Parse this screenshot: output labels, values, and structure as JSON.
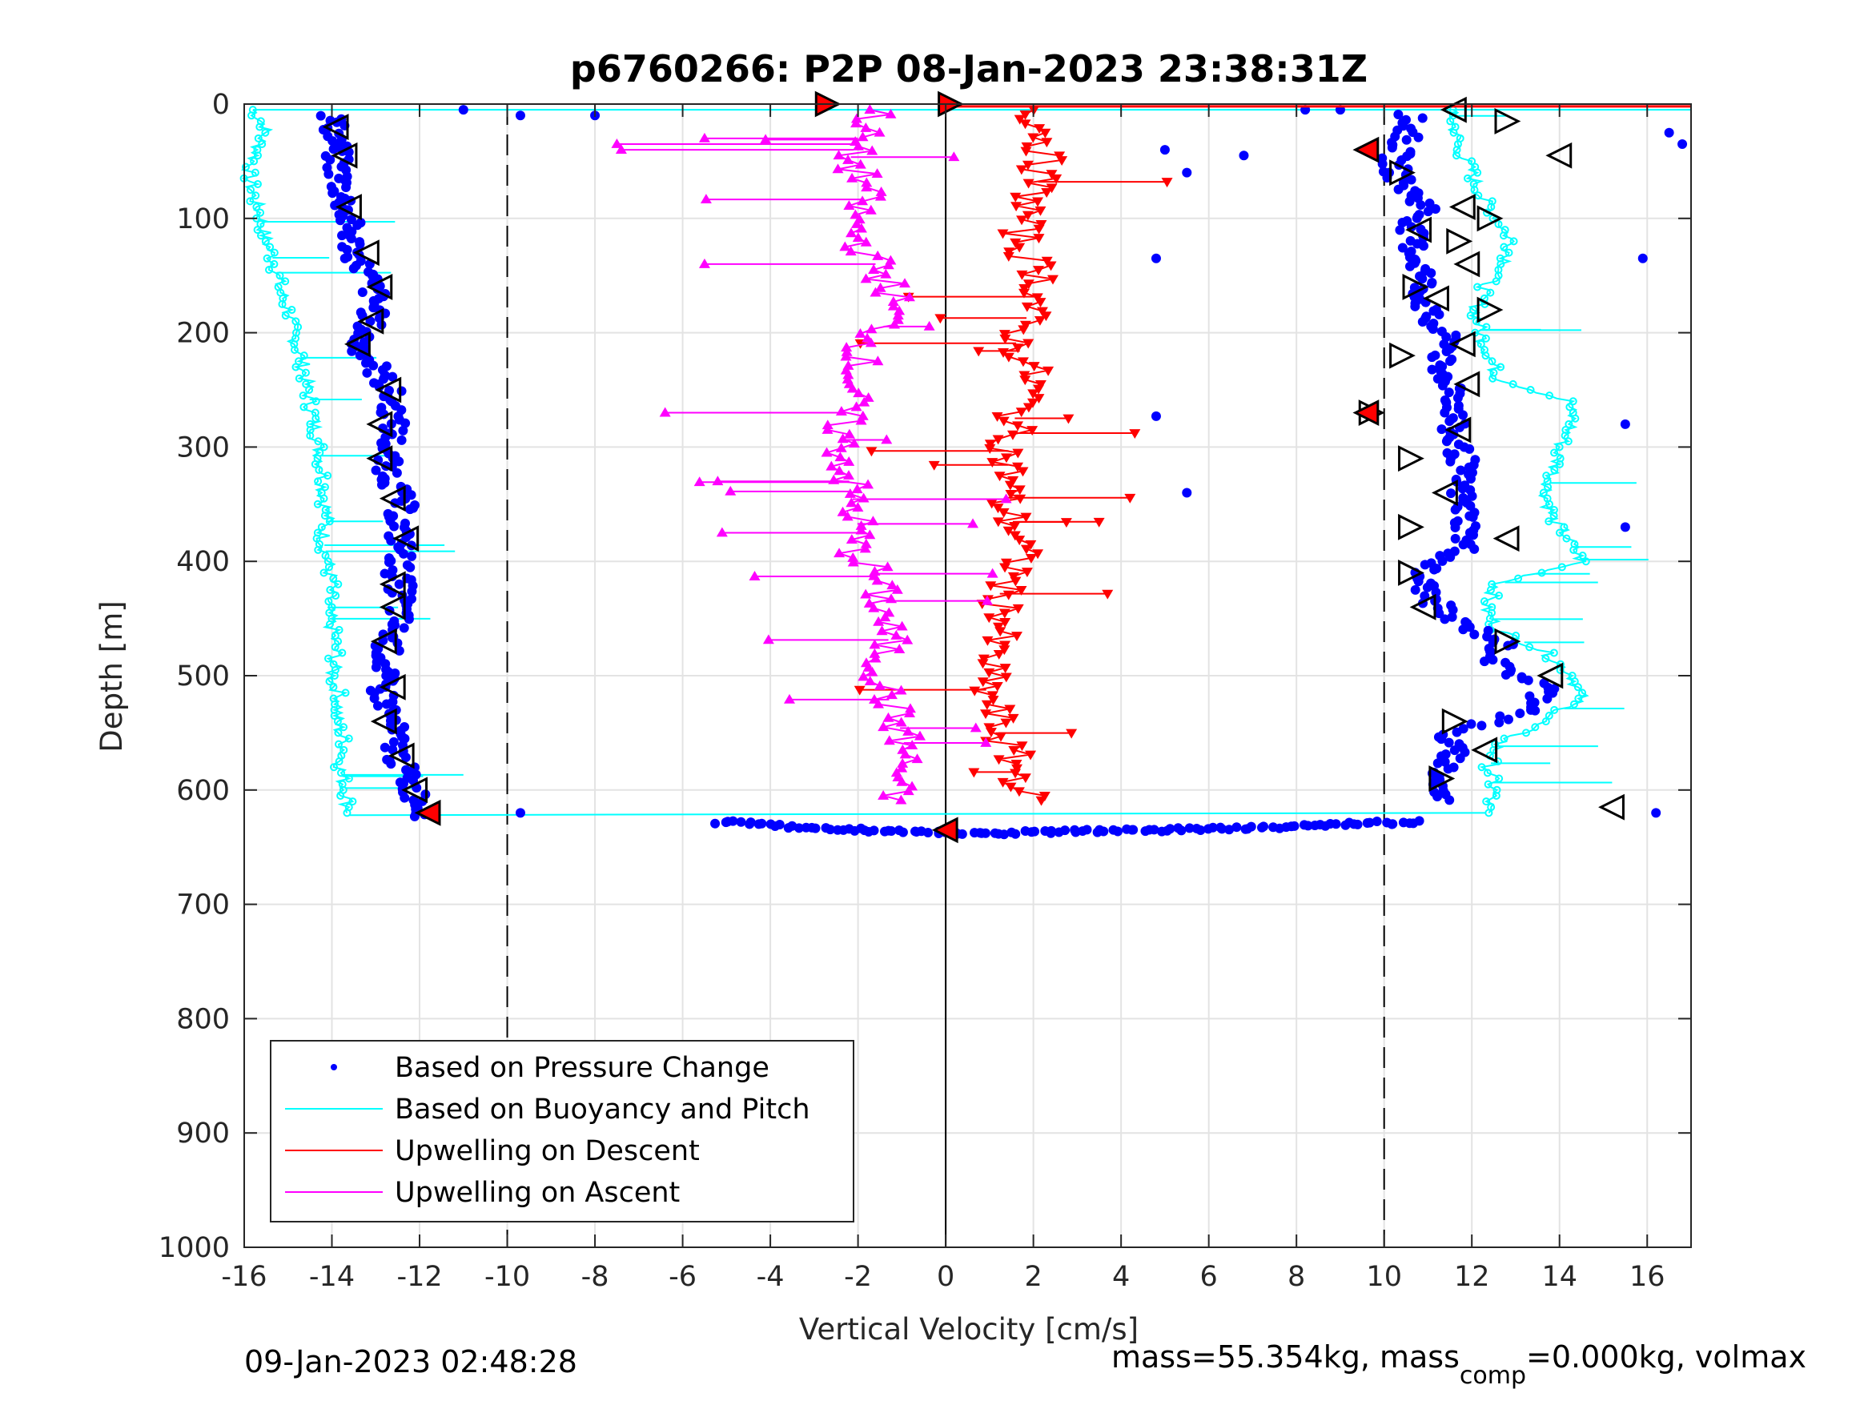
{
  "chart_data": {
    "type": "scatter",
    "title": "p6760266: P2P 08-Jan-2023 23:38:31Z",
    "xlabel": "Vertical Velocity [cm/s]",
    "ylabel": "Depth [m]",
    "xlim": [
      -16,
      17
    ],
    "ylim": [
      0,
      1000
    ],
    "y_reversed": true,
    "grid": true,
    "xticks": [
      "-16",
      "-14",
      "-12",
      "-10",
      "-8",
      "-6",
      "-4",
      "-2",
      "0",
      "2",
      "4",
      "6",
      "8",
      "10",
      "12",
      "14",
      "16"
    ],
    "yticks": [
      "0",
      "100",
      "200",
      "300",
      "400",
      "500",
      "600",
      "700",
      "800",
      "900",
      "1000"
    ],
    "reference_lines": [
      {
        "x": -10,
        "style": "dashed"
      },
      {
        "x": 0,
        "style": "solid"
      },
      {
        "x": 10,
        "style": "dashed"
      }
    ],
    "legend_position": "bottom-left",
    "colors": {
      "pressure": "#0000ff",
      "buoyancy": "#00ffff",
      "upwell_descent": "#ff0000",
      "upwell_ascent": "#ff00ff"
    },
    "series": [
      {
        "name": "Based on Pressure Change",
        "color": "#0000ff",
        "marker": "dot",
        "descent": {
          "depth": [
            10,
            30,
            50,
            70,
            90,
            110,
            130,
            150,
            170,
            190,
            210,
            230,
            250,
            270,
            290,
            310,
            330,
            350,
            370,
            390,
            410,
            430,
            450,
            470,
            490,
            510,
            530,
            550,
            570,
            590,
            610,
            625
          ],
          "velocity": [
            -14.0,
            -13.9,
            -13.9,
            -13.8,
            -13.7,
            -13.6,
            -13.5,
            -13.2,
            -13.0,
            -13.1,
            -13.4,
            -13.0,
            -12.7,
            -12.6,
            -12.6,
            -12.8,
            -12.6,
            -12.4,
            -12.5,
            -12.4,
            -12.5,
            -12.4,
            -12.5,
            -12.7,
            -12.8,
            -12.9,
            -12.7,
            -12.6,
            -12.5,
            -12.3,
            -12.0,
            -11.8
          ]
        },
        "turnaround": {
          "depth": [
            628,
            632,
            635,
            636,
            638,
            638,
            637,
            636,
            635,
            633,
            630,
            628
          ],
          "velocity": [
            -5.0,
            -3.5,
            -2.0,
            -1.0,
            0,
            1.0,
            2.0,
            3.5,
            5.0,
            7.0,
            9.0,
            10.5
          ]
        },
        "ascent": {
          "depth": [
            610,
            590,
            570,
            550,
            530,
            510,
            490,
            470,
            450,
            430,
            410,
            390,
            370,
            350,
            330,
            310,
            290,
            270,
            250,
            230,
            210,
            190,
            170,
            150,
            130,
            110,
            90,
            70,
            50,
            30,
            10
          ],
          "velocity": [
            11.3,
            11.2,
            11.6,
            11.4,
            13.5,
            13.7,
            12.5,
            12.7,
            11.5,
            11.0,
            10.8,
            11.8,
            11.9,
            11.8,
            11.7,
            11.8,
            11.5,
            11.6,
            11.7,
            11.1,
            11.6,
            11.0,
            10.9,
            10.9,
            10.7,
            10.6,
            11.0,
            10.4,
            10.2,
            10.5,
            10.6
          ]
        },
        "outliers": {
          "depth": [
            5,
            10,
            10,
            5,
            5,
            40,
            60,
            45,
            135,
            273,
            340,
            620,
            620,
            280,
            370,
            25,
            35,
            135
          ],
          "velocity": [
            -11.0,
            -9.7,
            -8.0,
            8.2,
            9.0,
            5.0,
            5.5,
            6.8,
            4.8,
            4.8,
            5.5,
            16.2,
            -9.7,
            15.5,
            15.5,
            16.5,
            16.8,
            15.9
          ]
        }
      },
      {
        "name": "Based on Buoyancy and Pitch",
        "color": "#00ffff",
        "marker": "circle-line",
        "descent": {
          "depth": [
            5,
            20,
            40,
            60,
            80,
            100,
            120,
            140,
            160,
            180,
            200,
            220,
            240,
            260,
            280,
            300,
            320,
            340,
            360,
            380,
            400,
            420,
            440,
            460,
            480,
            500,
            520,
            540,
            560,
            580,
            600,
            620
          ],
          "velocity": [
            -15.8,
            -15.5,
            -15.7,
            -15.9,
            -15.8,
            -15.6,
            -15.5,
            -15.3,
            -15.2,
            -15.0,
            -14.9,
            -14.7,
            -14.6,
            -14.5,
            -14.4,
            -14.3,
            -14.2,
            -14.2,
            -14.1,
            -14.2,
            -14.1,
            -14.0,
            -14.1,
            -14.0,
            -13.9,
            -14.0,
            -13.8,
            -13.9,
            -13.7,
            -13.8,
            -13.7,
            -13.6
          ]
        },
        "ascent": {
          "depth": [
            620,
            600,
            580,
            560,
            540,
            520,
            500,
            480,
            460,
            440,
            420,
            400,
            380,
            360,
            340,
            320,
            300,
            280,
            260,
            240,
            220,
            200,
            180,
            160,
            140,
            120,
            100,
            80,
            60,
            40,
            20,
            5
          ],
          "velocity": [
            12.3,
            12.5,
            12.4,
            12.6,
            13.6,
            14.5,
            14.3,
            13.7,
            12.6,
            12.3,
            12.6,
            14.5,
            14.2,
            13.8,
            13.7,
            13.9,
            14.0,
            14.3,
            14.2,
            12.6,
            12.4,
            12.2,
            12.1,
            12.3,
            12.8,
            12.9,
            12.6,
            12.2,
            12.0,
            11.7,
            11.6,
            11.5
          ]
        }
      },
      {
        "name": "Upwelling on Descent",
        "color": "#ff0000",
        "marker": "triangle-down",
        "depth": [
          5,
          30,
          50,
          70,
          90,
          110,
          130,
          150,
          170,
          190,
          210,
          230,
          250,
          270,
          290,
          310,
          330,
          350,
          370,
          390,
          410,
          430,
          450,
          470,
          490,
          510,
          530,
          550,
          570,
          590,
          610
        ],
        "velocity": [
          2.0,
          2.3,
          2.2,
          2.1,
          1.9,
          1.7,
          1.8,
          2.2,
          2.1,
          1.8,
          1.6,
          1.9,
          2.0,
          1.6,
          1.5,
          1.4,
          1.5,
          1.3,
          1.6,
          1.7,
          1.6,
          1.2,
          1.4,
          1.1,
          1.0,
          0.9,
          1.1,
          1.2,
          1.5,
          1.7,
          1.9
        ]
      },
      {
        "name": "Upwelling on Ascent",
        "color": "#ff00ff",
        "marker": "triangle-up",
        "depth": [
          5,
          30,
          50,
          70,
          90,
          110,
          130,
          150,
          170,
          190,
          210,
          230,
          250,
          270,
          290,
          310,
          330,
          350,
          370,
          390,
          410,
          430,
          450,
          470,
          490,
          510,
          530,
          550,
          570,
          590,
          610
        ],
        "velocity": [
          -1.5,
          -2.0,
          -2.2,
          -1.8,
          -2.0,
          -2.1,
          -1.8,
          -1.4,
          -1.2,
          -1.3,
          -1.8,
          -2.0,
          -2.1,
          -2.3,
          -2.4,
          -2.3,
          -2.2,
          -2.1,
          -2.0,
          -2.1,
          -1.6,
          -1.5,
          -1.4,
          -1.3,
          -1.5,
          -1.4,
          -1.2,
          -1.0,
          -0.9,
          -1.1,
          -1.3
        ]
      }
    ],
    "black_triangles_left": {
      "depth": [
        20,
        45,
        90,
        130,
        160,
        190,
        210,
        250,
        280,
        310,
        345,
        380,
        420,
        440,
        470,
        510,
        540,
        570,
        600
      ],
      "velocity": [
        -13.9,
        -13.7,
        -13.6,
        -13.2,
        -12.9,
        -13.1,
        -13.4,
        -12.7,
        -12.9,
        -12.9,
        -12.6,
        -12.3,
        -12.6,
        -12.6,
        -12.8,
        -12.6,
        -12.8,
        -12.4,
        -12.1
      ]
    },
    "black_triangles_right": {
      "depth": [
        5,
        15,
        45,
        60,
        90,
        100,
        110,
        120,
        140,
        160,
        170,
        180,
        210,
        220,
        245,
        270,
        285,
        310,
        340,
        370,
        380,
        410,
        440,
        470,
        500,
        540,
        565,
        590,
        615
      ],
      "velocity": [
        11.6,
        12.8,
        14.0,
        10.4,
        11.8,
        12.4,
        10.8,
        11.7,
        11.9,
        10.7,
        11.2,
        12.4,
        11.8,
        10.4,
        11.9,
        9.7,
        11.7,
        10.6,
        11.4,
        10.6,
        12.8,
        10.6,
        10.9,
        12.8,
        13.8,
        11.6,
        12.3,
        11.3,
        15.2
      ]
    },
    "red_markers": {
      "depth": [
        0,
        0,
        40,
        270,
        620,
        635
      ],
      "velocity": [
        -2.7,
        0.1,
        9.6,
        9.6,
        -11.8,
        0
      ]
    },
    "legend": [
      {
        "label": "Based on Pressure Change",
        "style": "dot",
        "color": "#0000ff"
      },
      {
        "label": "Based on Buoyancy and Pitch",
        "style": "line",
        "color": "#00ffff"
      },
      {
        "label": "Upwelling on Descent",
        "style": "line",
        "color": "#ff0000"
      },
      {
        "label": "Upwelling on Ascent",
        "style": "line",
        "color": "#ff00ff"
      }
    ]
  },
  "footer": {
    "timestamp": "09-Jan-2023 02:48:28",
    "mass_text_prefix": "mass=55.354kg, mass",
    "mass_subscript": "comp",
    "mass_text_suffix": "=0.000kg, volmax"
  }
}
